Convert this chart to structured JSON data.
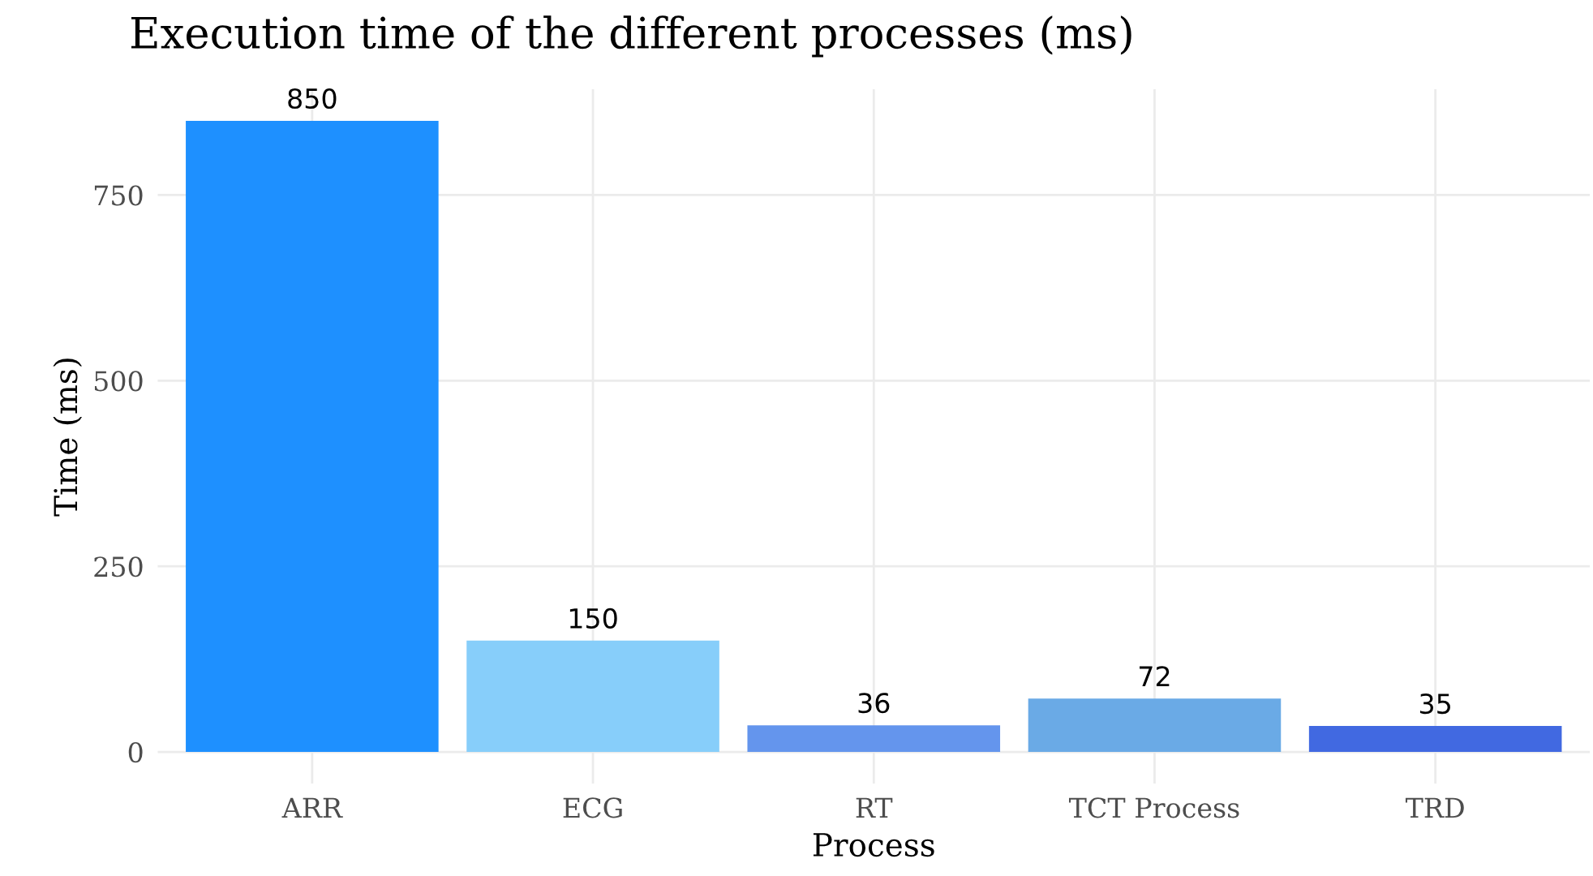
{
  "chart_data": {
    "type": "bar",
    "title": "Execution time of the different processes (ms)",
    "xlabel": "Process",
    "ylabel": "Time (ms)",
    "categories": [
      "ARR",
      "ECG",
      "RT",
      "TCT Process",
      "TRD"
    ],
    "values": [
      850,
      150,
      36,
      72,
      35
    ],
    "colors": [
      "#1e90ff",
      "#87cefa",
      "#6495ed",
      "#6aaae6",
      "#4169e1"
    ],
    "ylim": [
      -42.5,
      892.5
    ],
    "yticks": [
      0,
      250,
      500,
      750
    ],
    "grid": true,
    "data_labels": true
  }
}
